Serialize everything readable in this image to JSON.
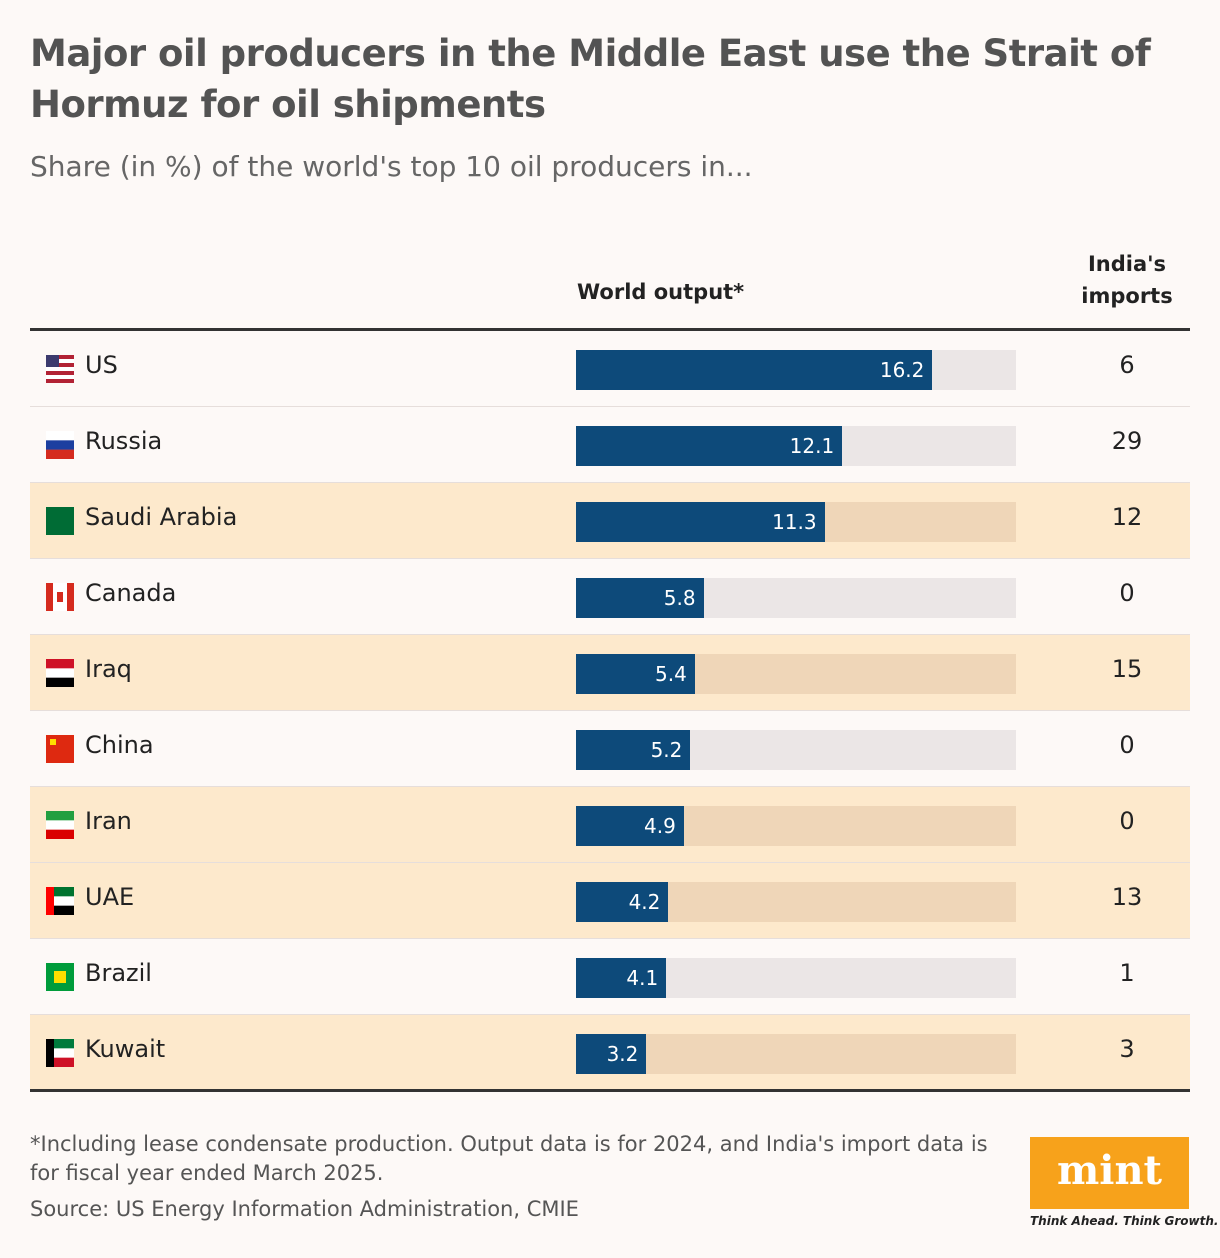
{
  "chart_data": {
    "type": "bar",
    "title": "Major oil producers in the Middle East use the Strait of Hormuz for oil shipments",
    "subtitle": "Share (in %) of the world's top 10 oil producers in...",
    "categories": [
      "US",
      "Russia",
      "Saudi Arabia",
      "Canada",
      "Iraq",
      "China",
      "Iran",
      "UAE",
      "Brazil",
      "Kuwait"
    ],
    "series": [
      {
        "name": "World output*",
        "color": "#0d4a7a",
        "values": [
          16.2,
          12.1,
          11.3,
          5.8,
          5.4,
          5.2,
          4.9,
          4.2,
          4.1,
          3.2
        ]
      }
    ],
    "imports": {
      "name": "India's imports",
      "values": [
        6,
        29,
        12,
        0,
        15,
        0,
        0,
        13,
        1,
        3
      ]
    },
    "highlight": [
      false,
      false,
      true,
      false,
      true,
      false,
      true,
      true,
      false,
      true
    ],
    "highlight_color": "#fde9cc",
    "xlim": [
      0,
      20
    ],
    "footnote": "*Including lease condensate production. Output data is for 2024, and India's import data is for fiscal year ended March 2025.",
    "source": "Source: US Energy Information Administration, CMIE",
    "logo": "mint",
    "tagline": "Think Ahead. Think Growth."
  }
}
